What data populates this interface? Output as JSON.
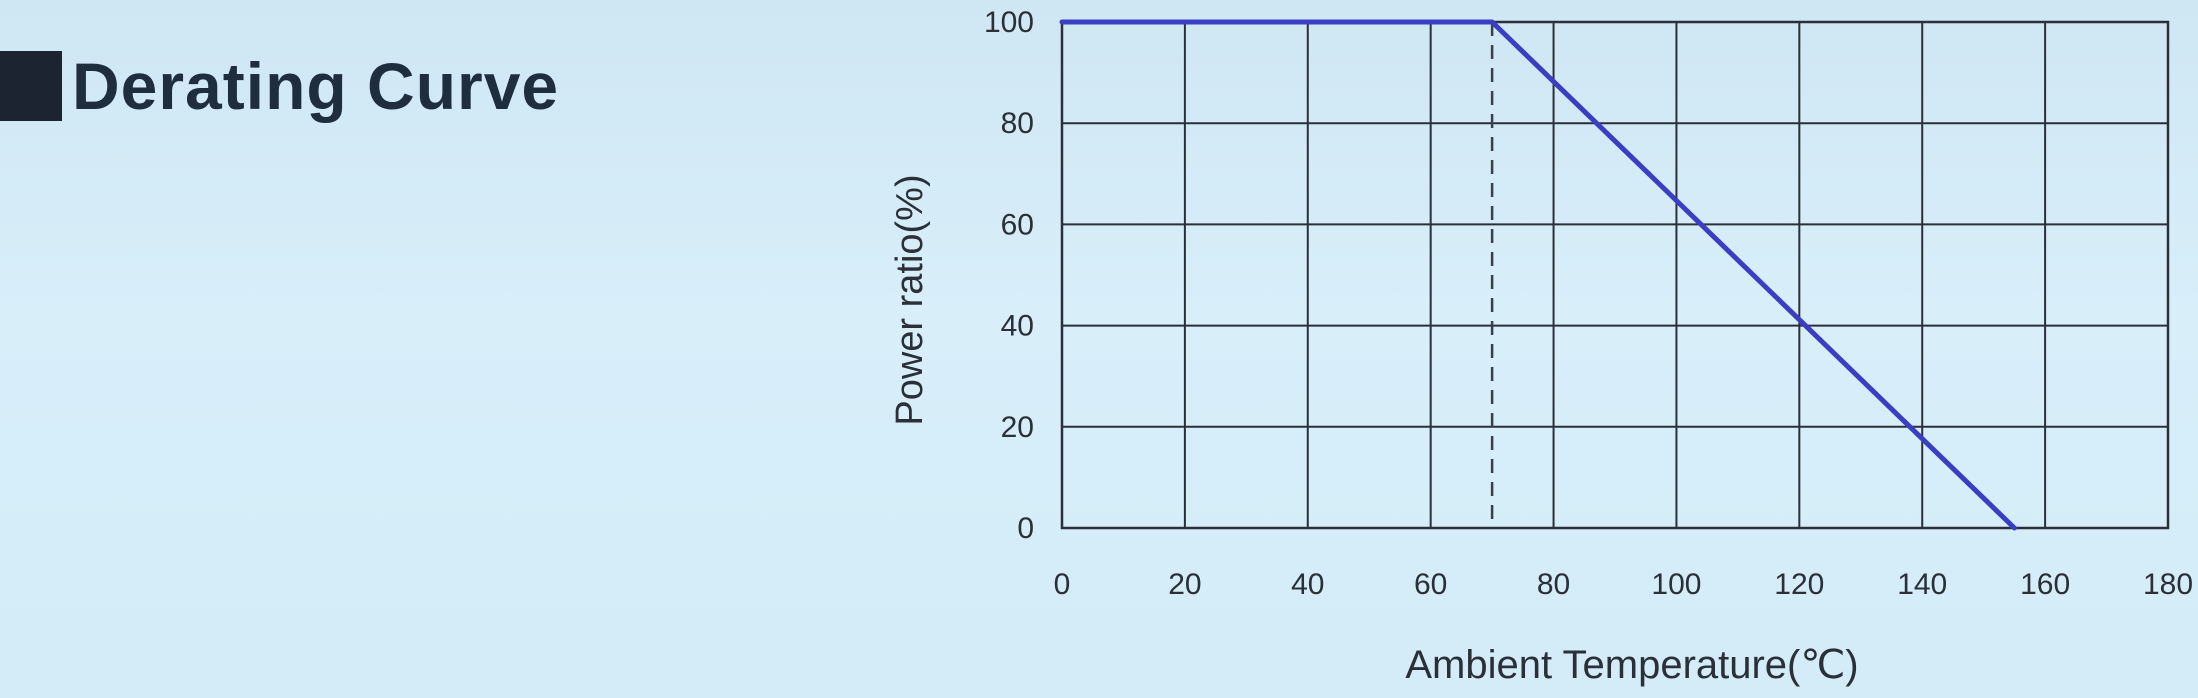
{
  "heading": {
    "text": "Derating Curve"
  },
  "chart_data": {
    "type": "line",
    "title": "",
    "xlabel": "Ambient Temperature(℃)",
    "ylabel": "Power ratio(%)",
    "xlim": [
      0,
      180
    ],
    "ylim": [
      0,
      100
    ],
    "xticks": [
      0,
      20,
      40,
      60,
      80,
      100,
      120,
      140,
      160,
      180
    ],
    "yticks": [
      0,
      20,
      40,
      60,
      80,
      100
    ],
    "grid": true,
    "legend": "none",
    "series": [
      {
        "x": [
          0,
          70,
          155
        ],
        "y": [
          100,
          100,
          0
        ],
        "color": "#3a3ec2"
      }
    ],
    "reference_lines": [
      {
        "orientation": "vertical",
        "x": 70,
        "style": "dashed"
      }
    ]
  }
}
